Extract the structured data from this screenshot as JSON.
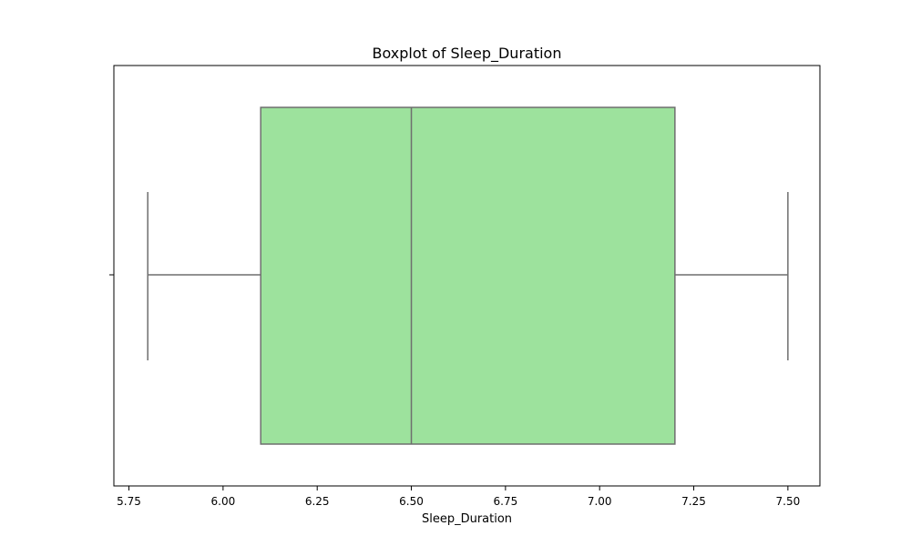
{
  "chart_data": {
    "type": "boxplot",
    "title": "Boxplot of Sleep_Duration",
    "xlabel": "Sleep_Duration",
    "ylabel": "",
    "orientation": "horizontal",
    "xlim": [
      5.71,
      7.585
    ],
    "x_ticks": [
      5.75,
      6.0,
      6.25,
      6.5,
      6.75,
      7.0,
      7.25,
      7.5
    ],
    "x_tick_labels": [
      "5.75",
      "6.00",
      "6.25",
      "6.50",
      "6.75",
      "7.00",
      "7.25",
      "7.50"
    ],
    "box": {
      "whisker_low": 5.8,
      "q1": 6.1,
      "median": 6.5,
      "q3": 7.2,
      "whisker_high": 7.5
    },
    "grid": false,
    "colors": {
      "box_fill": "#9de29d",
      "box_edge": "#6e6e6e",
      "axes": "#000000",
      "background": "#ffffff"
    }
  }
}
